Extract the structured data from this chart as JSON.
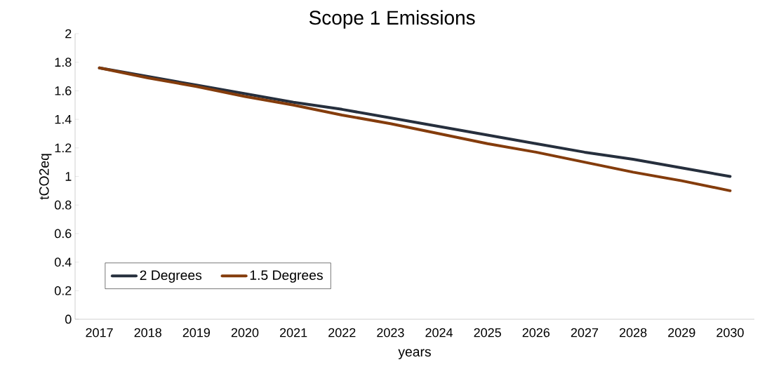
{
  "chart_data": {
    "type": "line",
    "title": "Scope 1 Emissions",
    "xlabel": "years",
    "ylabel": "tCO2eq",
    "categories": [
      "2017",
      "2018",
      "2019",
      "2020",
      "2021",
      "2022",
      "2023",
      "2024",
      "2025",
      "2026",
      "2027",
      "2028",
      "2029",
      "2030"
    ],
    "series": [
      {
        "name": "2 Degrees",
        "color": "#262f3d",
        "values": [
          1.76,
          1.7,
          1.64,
          1.58,
          1.52,
          1.47,
          1.41,
          1.35,
          1.29,
          1.23,
          1.17,
          1.12,
          1.06,
          1.0
        ]
      },
      {
        "name": "1.5 Degrees",
        "color": "#843c0c",
        "values": [
          1.76,
          1.69,
          1.63,
          1.56,
          1.5,
          1.43,
          1.37,
          1.3,
          1.23,
          1.17,
          1.1,
          1.03,
          0.97,
          0.9
        ]
      }
    ],
    "ylim": [
      0,
      2
    ],
    "yticks": [
      0,
      0.2,
      0.4,
      0.6,
      0.8,
      1,
      1.2,
      1.4,
      1.6,
      1.8,
      2
    ],
    "legend": "bottom left",
    "marker": "none"
  }
}
